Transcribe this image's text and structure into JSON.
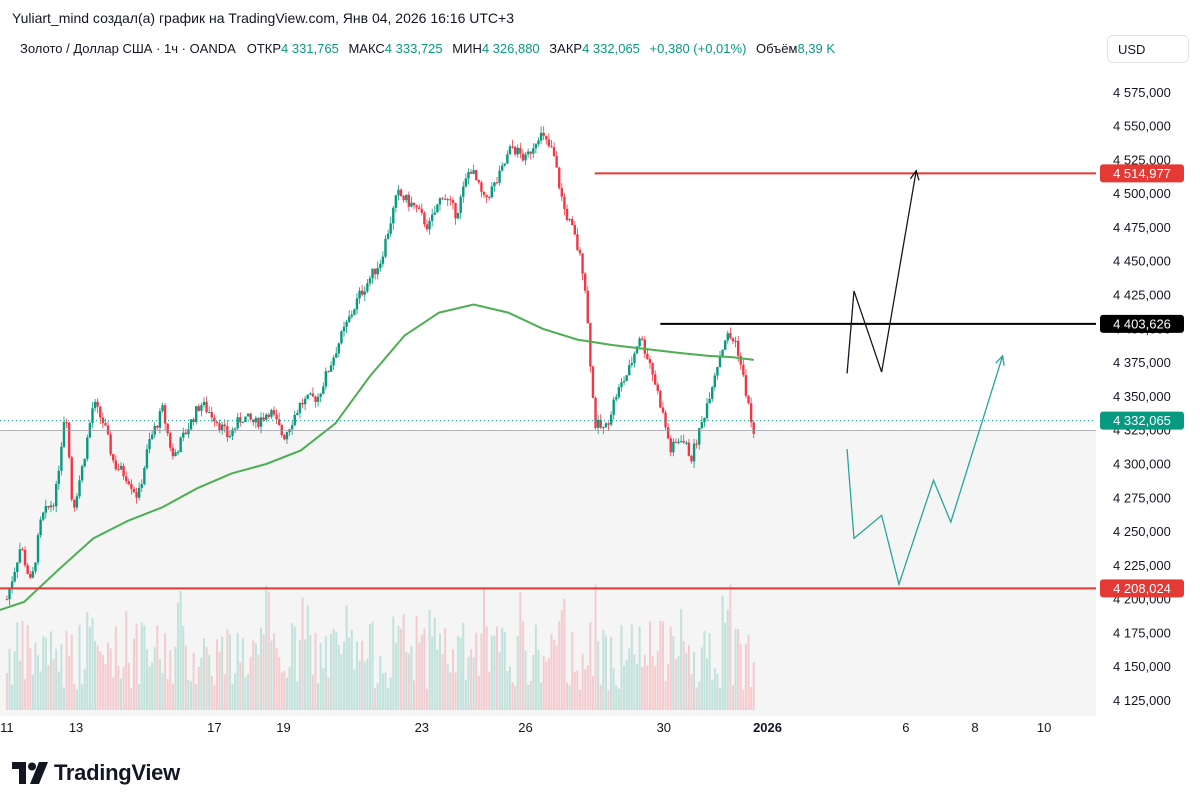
{
  "caption": "Yuliart_mind создал(а) график на TradingView.com, Янв 04, 2026 16:16 UTC+3",
  "legend": {
    "symbol": "Золото / Доллар США · 1ч · OANDA",
    "open_label": "ОТКР",
    "open": "4 331,765",
    "high_label": "МАКС",
    "high": "4 333,725",
    "low_label": "МИН",
    "low": "4 326,880",
    "close_label": "ЗАКР",
    "close": "4 332,065",
    "change": "+0,380 (+0,01%)",
    "volume_label": "Объём",
    "volume": "8,39 K"
  },
  "currency": "USD",
  "brand": "TradingView",
  "colors": {
    "up": "#089981",
    "down": "#f23645",
    "ma": "#4caf50",
    "level_red": "#e53935",
    "level_black": "#000000",
    "projection_teal": "#26a69a"
  },
  "chart_data": {
    "type": "candlestick",
    "title": "Золото / Доллар США · 1ч · OANDA",
    "ylim": [
      4118000,
      4590000
    ],
    "y_ticks": [
      4125000,
      4150000,
      4175000,
      4200000,
      4225000,
      4250000,
      4275000,
      4300000,
      4325000,
      4350000,
      4375000,
      4400000,
      4425000,
      4450000,
      4475000,
      4500000,
      4525000,
      4550000,
      4575000
    ],
    "y_tick_labels": [
      "4 125,000",
      "4 150,000",
      "4 175,000",
      "4 200,000",
      "4 225,000",
      "4 250,000",
      "4 275,000",
      "4 300,000",
      "4 325,000",
      "4 350,000",
      "4 375,000",
      "4 400,000",
      "4 425,000",
      "4 450,000",
      "4 475,000",
      "4 500,000",
      "4 525,000",
      "4 550,000",
      "4 575,000"
    ],
    "x_ticks": [
      {
        "label": "11",
        "day": 11,
        "bold": false
      },
      {
        "label": "13",
        "day": 13,
        "bold": false
      },
      {
        "label": "17",
        "day": 17,
        "bold": false
      },
      {
        "label": "19",
        "day": 19,
        "bold": false
      },
      {
        "label": "23",
        "day": 23,
        "bold": false
      },
      {
        "label": "26",
        "day": 26,
        "bold": false
      },
      {
        "label": "30",
        "day": 30,
        "bold": false
      },
      {
        "label": "2026",
        "day": 33,
        "bold": true
      },
      {
        "label": "6",
        "day": 37,
        "bold": false
      },
      {
        "label": "8",
        "day": 39,
        "bold": false
      },
      {
        "label": "10",
        "day": 41,
        "bold": false
      }
    ],
    "price_path": [
      [
        11.0,
        4200000
      ],
      [
        11.4,
        4240000
      ],
      [
        11.7,
        4210000
      ],
      [
        12.0,
        4260000
      ],
      [
        12.4,
        4275000
      ],
      [
        12.7,
        4345000
      ],
      [
        12.9,
        4265000
      ],
      [
        13.2,
        4300000
      ],
      [
        13.5,
        4345000
      ],
      [
        13.8,
        4330000
      ],
      [
        14.1,
        4300000
      ],
      [
        14.5,
        4290000
      ],
      [
        14.8,
        4275000
      ],
      [
        15.1,
        4315000
      ],
      [
        15.5,
        4340000
      ],
      [
        15.8,
        4305000
      ],
      [
        16.2,
        4325000
      ],
      [
        16.6,
        4345000
      ],
      [
        17.0,
        4335000
      ],
      [
        17.4,
        4320000
      ],
      [
        17.8,
        4335000
      ],
      [
        18.2,
        4330000
      ],
      [
        18.6,
        4340000
      ],
      [
        19.0,
        4320000
      ],
      [
        19.5,
        4345000
      ],
      [
        20.0,
        4350000
      ],
      [
        20.6,
        4390000
      ],
      [
        21.2,
        4425000
      ],
      [
        21.8,
        4450000
      ],
      [
        22.3,
        4500000
      ],
      [
        22.8,
        4490000
      ],
      [
        23.2,
        4475000
      ],
      [
        23.6,
        4500000
      ],
      [
        24.0,
        4485000
      ],
      [
        24.4,
        4520000
      ],
      [
        24.8,
        4495000
      ],
      [
        25.2,
        4510000
      ],
      [
        25.6,
        4535000
      ],
      [
        26.0,
        4525000
      ],
      [
        26.4,
        4545000
      ],
      [
        26.8,
        4530000
      ],
      [
        27.1,
        4490000
      ],
      [
        27.4,
        4470000
      ],
      [
        27.7,
        4440000
      ],
      [
        28.0,
        4330000
      ],
      [
        28.3,
        4325000
      ],
      [
        28.6,
        4350000
      ],
      [
        29.0,
        4370000
      ],
      [
        29.3,
        4395000
      ],
      [
        29.6,
        4375000
      ],
      [
        29.9,
        4345000
      ],
      [
        30.2,
        4310000
      ],
      [
        30.5,
        4320000
      ],
      [
        30.8,
        4305000
      ],
      [
        31.1,
        4330000
      ],
      [
        31.5,
        4370000
      ],
      [
        31.8,
        4395000
      ],
      [
        32.1,
        4390000
      ],
      [
        32.4,
        4350000
      ],
      [
        32.6,
        4320000
      ]
    ],
    "ma_path": [
      [
        10.8,
        4192000
      ],
      [
        11.5,
        4198000
      ],
      [
        12.5,
        4222000
      ],
      [
        13.5,
        4245000
      ],
      [
        14.5,
        4258000
      ],
      [
        15.5,
        4268000
      ],
      [
        16.5,
        4282000
      ],
      [
        17.5,
        4293000
      ],
      [
        18.5,
        4300000
      ],
      [
        19.5,
        4310000
      ],
      [
        20.5,
        4330000
      ],
      [
        21.5,
        4365000
      ],
      [
        22.5,
        4395000
      ],
      [
        23.5,
        4412000
      ],
      [
        24.5,
        4418000
      ],
      [
        25.5,
        4412000
      ],
      [
        26.5,
        4400000
      ],
      [
        27.5,
        4392000
      ],
      [
        28.5,
        4388000
      ],
      [
        29.5,
        4385000
      ],
      [
        30.5,
        4382000
      ],
      [
        31.3,
        4380000
      ],
      [
        32.0,
        4379000
      ],
      [
        32.6,
        4377000
      ]
    ],
    "levels": [
      {
        "price": 4514977,
        "label": "4 514,977",
        "style": "red",
        "from_day": 28.0
      },
      {
        "price": 4403626,
        "label": "4 403,626",
        "style": "black",
        "from_day": 29.9
      },
      {
        "price": 4208024,
        "label": "4 208,024",
        "style": "red",
        "from_day": 10.8
      }
    ],
    "last_price": {
      "price": 4332065,
      "label": "4 332,065"
    },
    "projections": [
      {
        "name": "bullish",
        "color": "black",
        "points": [
          [
            35.3,
            4367000
          ],
          [
            35.5,
            4428000
          ],
          [
            36.3,
            4368000
          ],
          [
            37.3,
            4517000
          ]
        ]
      },
      {
        "name": "bearish",
        "color": "teal",
        "points": [
          [
            35.3,
            4311000
          ],
          [
            35.5,
            4245000
          ],
          [
            36.3,
            4262000
          ],
          [
            36.8,
            4211000
          ],
          [
            37.8,
            4288000
          ],
          [
            38.3,
            4257000
          ],
          [
            39.8,
            4380000
          ]
        ]
      }
    ]
  }
}
